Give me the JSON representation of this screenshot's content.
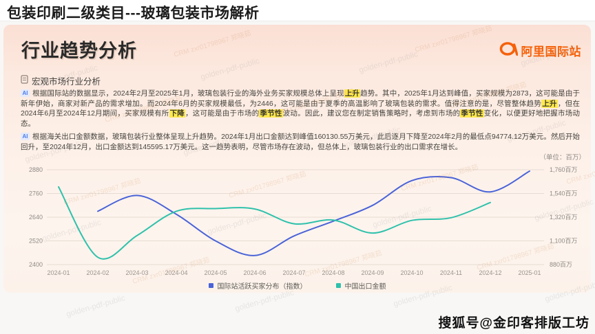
{
  "page": {
    "title": "包装印刷二级类目---玻璃包装市场解析",
    "stamp": "搜狐号@金印客排版工坊"
  },
  "watermarks": {
    "gray": "golden-pdf-public",
    "crm": "CRM zxr01798967 郑晓茹"
  },
  "slide": {
    "heading": "行业趋势分析",
    "logo_text": "阿里国际站",
    "section_label": "宏观市场行业分析",
    "ai_badge": "AI",
    "paragraphs": [
      {
        "segments": [
          {
            "t": "根据国际站的数据显示，2024年2月至2025年1月，玻璃包装行业的海外业务买家规模总体上呈现"
          },
          {
            "t": "上升",
            "hl": true
          },
          {
            "t": "趋势。其中，2025年1月达到峰值，买家规模为2873，这可能是由于新年伊始，商家对新产品的需求增加。而2024年6月的买家规模最低，为2446，这可能是由于夏季的高温影响了玻璃包装的需求。值得注意的是，尽管整体趋势"
          },
          {
            "t": "上升",
            "hl": true
          },
          {
            "t": "，但在2024年6月至2024年12月期间，买家规模有所"
          },
          {
            "t": "下降",
            "hl": true
          },
          {
            "t": "，这可能是由于市场的"
          },
          {
            "t": "季节性",
            "hl": true
          },
          {
            "t": "波动。因此，建议您在制定销售策略时，考虑到市场的"
          },
          {
            "t": "季节性",
            "hl": true
          },
          {
            "t": "变化，以便更好地把握市场动态。"
          }
        ]
      },
      {
        "segments": [
          {
            "t": "根据海关出口金额数据，玻璃包装行业整体呈现上升趋势。2024年1月出口金额达到峰值160130.55万美元，此后逐月下降至2024年2月的最低点94774.12万美元。然后开始回升，至2024年12月，出口金额达到145595.17万美元。这一趋势表明，尽管市场存在波动，但总体上，玻璃包装行业的出口需求在增长。"
          }
        ]
      }
    ]
  },
  "chart_data": {
    "type": "line",
    "title": "",
    "unit_label": "（单位：百万）",
    "categories": [
      "2024-01",
      "2024-02",
      "2024-03",
      "2024-04",
      "2024-05",
      "2024-06",
      "2024-07",
      "2024-08",
      "2024-09",
      "2024-10",
      "2024-11",
      "2024-12",
      "2025-01"
    ],
    "left_axis": {
      "ticks": [
        2880,
        2760,
        2640,
        2520,
        2400
      ],
      "range": [
        2400,
        2880
      ]
    },
    "right_axis": {
      "tick_labels": [
        "1,760百万",
        "1,540百万",
        "1,320百万",
        "1,100百万",
        "880百万"
      ],
      "ticks": [
        1760,
        1540,
        1320,
        1100,
        880
      ],
      "range": [
        880,
        1760
      ]
    },
    "grid": true,
    "legend_position": "bottom",
    "series": [
      {
        "name": "国际站活跃买家分布（指数）",
        "color": "#4a63d8",
        "axis": "left",
        "values": [
          null,
          2670,
          2750,
          2655,
          2520,
          2446,
          2545,
          2620,
          2700,
          2825,
          2840,
          2768,
          2873
        ]
      },
      {
        "name": "中国出口金额",
        "color": "#2fc1ab",
        "axis": "right",
        "values": [
          1601,
          948,
          1150,
          1375,
          1400,
          1396,
          1259,
          1293,
          1173,
          1290,
          1315,
          1456,
          null
        ]
      }
    ]
  }
}
